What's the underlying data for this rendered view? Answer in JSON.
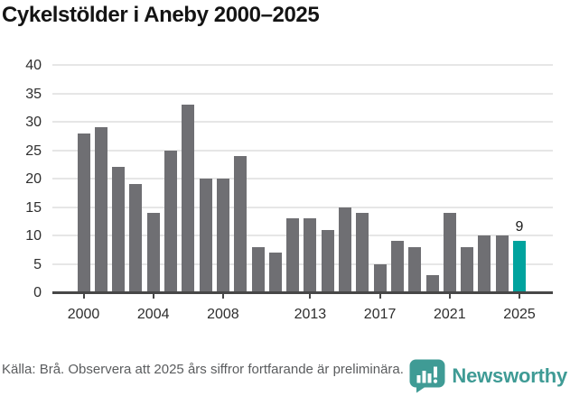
{
  "title": "Cykelstölder i Aneby 2000–2025",
  "footer": {
    "source_note": "Källa: Brå. Observera att 2025 års siffror fortfarande är preliminära."
  },
  "branding": {
    "name": "Newsworthy",
    "color": "#3F9B95"
  },
  "chart_data": {
    "type": "bar",
    "title": "Cykelstölder i Aneby 2000–2025",
    "xlabel": "",
    "ylabel": "",
    "categories": [
      2000,
      2001,
      2002,
      2003,
      2004,
      2005,
      2006,
      2007,
      2008,
      2009,
      2010,
      2011,
      2012,
      2013,
      2014,
      2015,
      2016,
      2017,
      2018,
      2019,
      2020,
      2021,
      2022,
      2023,
      2024,
      2025
    ],
    "values": [
      28,
      29,
      22,
      19,
      14,
      25,
      33,
      20,
      20,
      24,
      8,
      7,
      13,
      13,
      11,
      15,
      14,
      5,
      9,
      8,
      3,
      14,
      8,
      10,
      10,
      9
    ],
    "ylim": [
      0,
      40
    ],
    "y_ticks": [
      0,
      5,
      10,
      15,
      20,
      25,
      30,
      35,
      40
    ],
    "x_tick_years": [
      2000,
      2004,
      2008,
      2013,
      2017,
      2021,
      2025
    ],
    "grid": true,
    "legend": false,
    "bar_color": "#6F6F73",
    "highlight": {
      "year": 2025,
      "color": "#00A39E"
    },
    "annotations": [
      {
        "year": 2025,
        "text": "9"
      }
    ]
  }
}
